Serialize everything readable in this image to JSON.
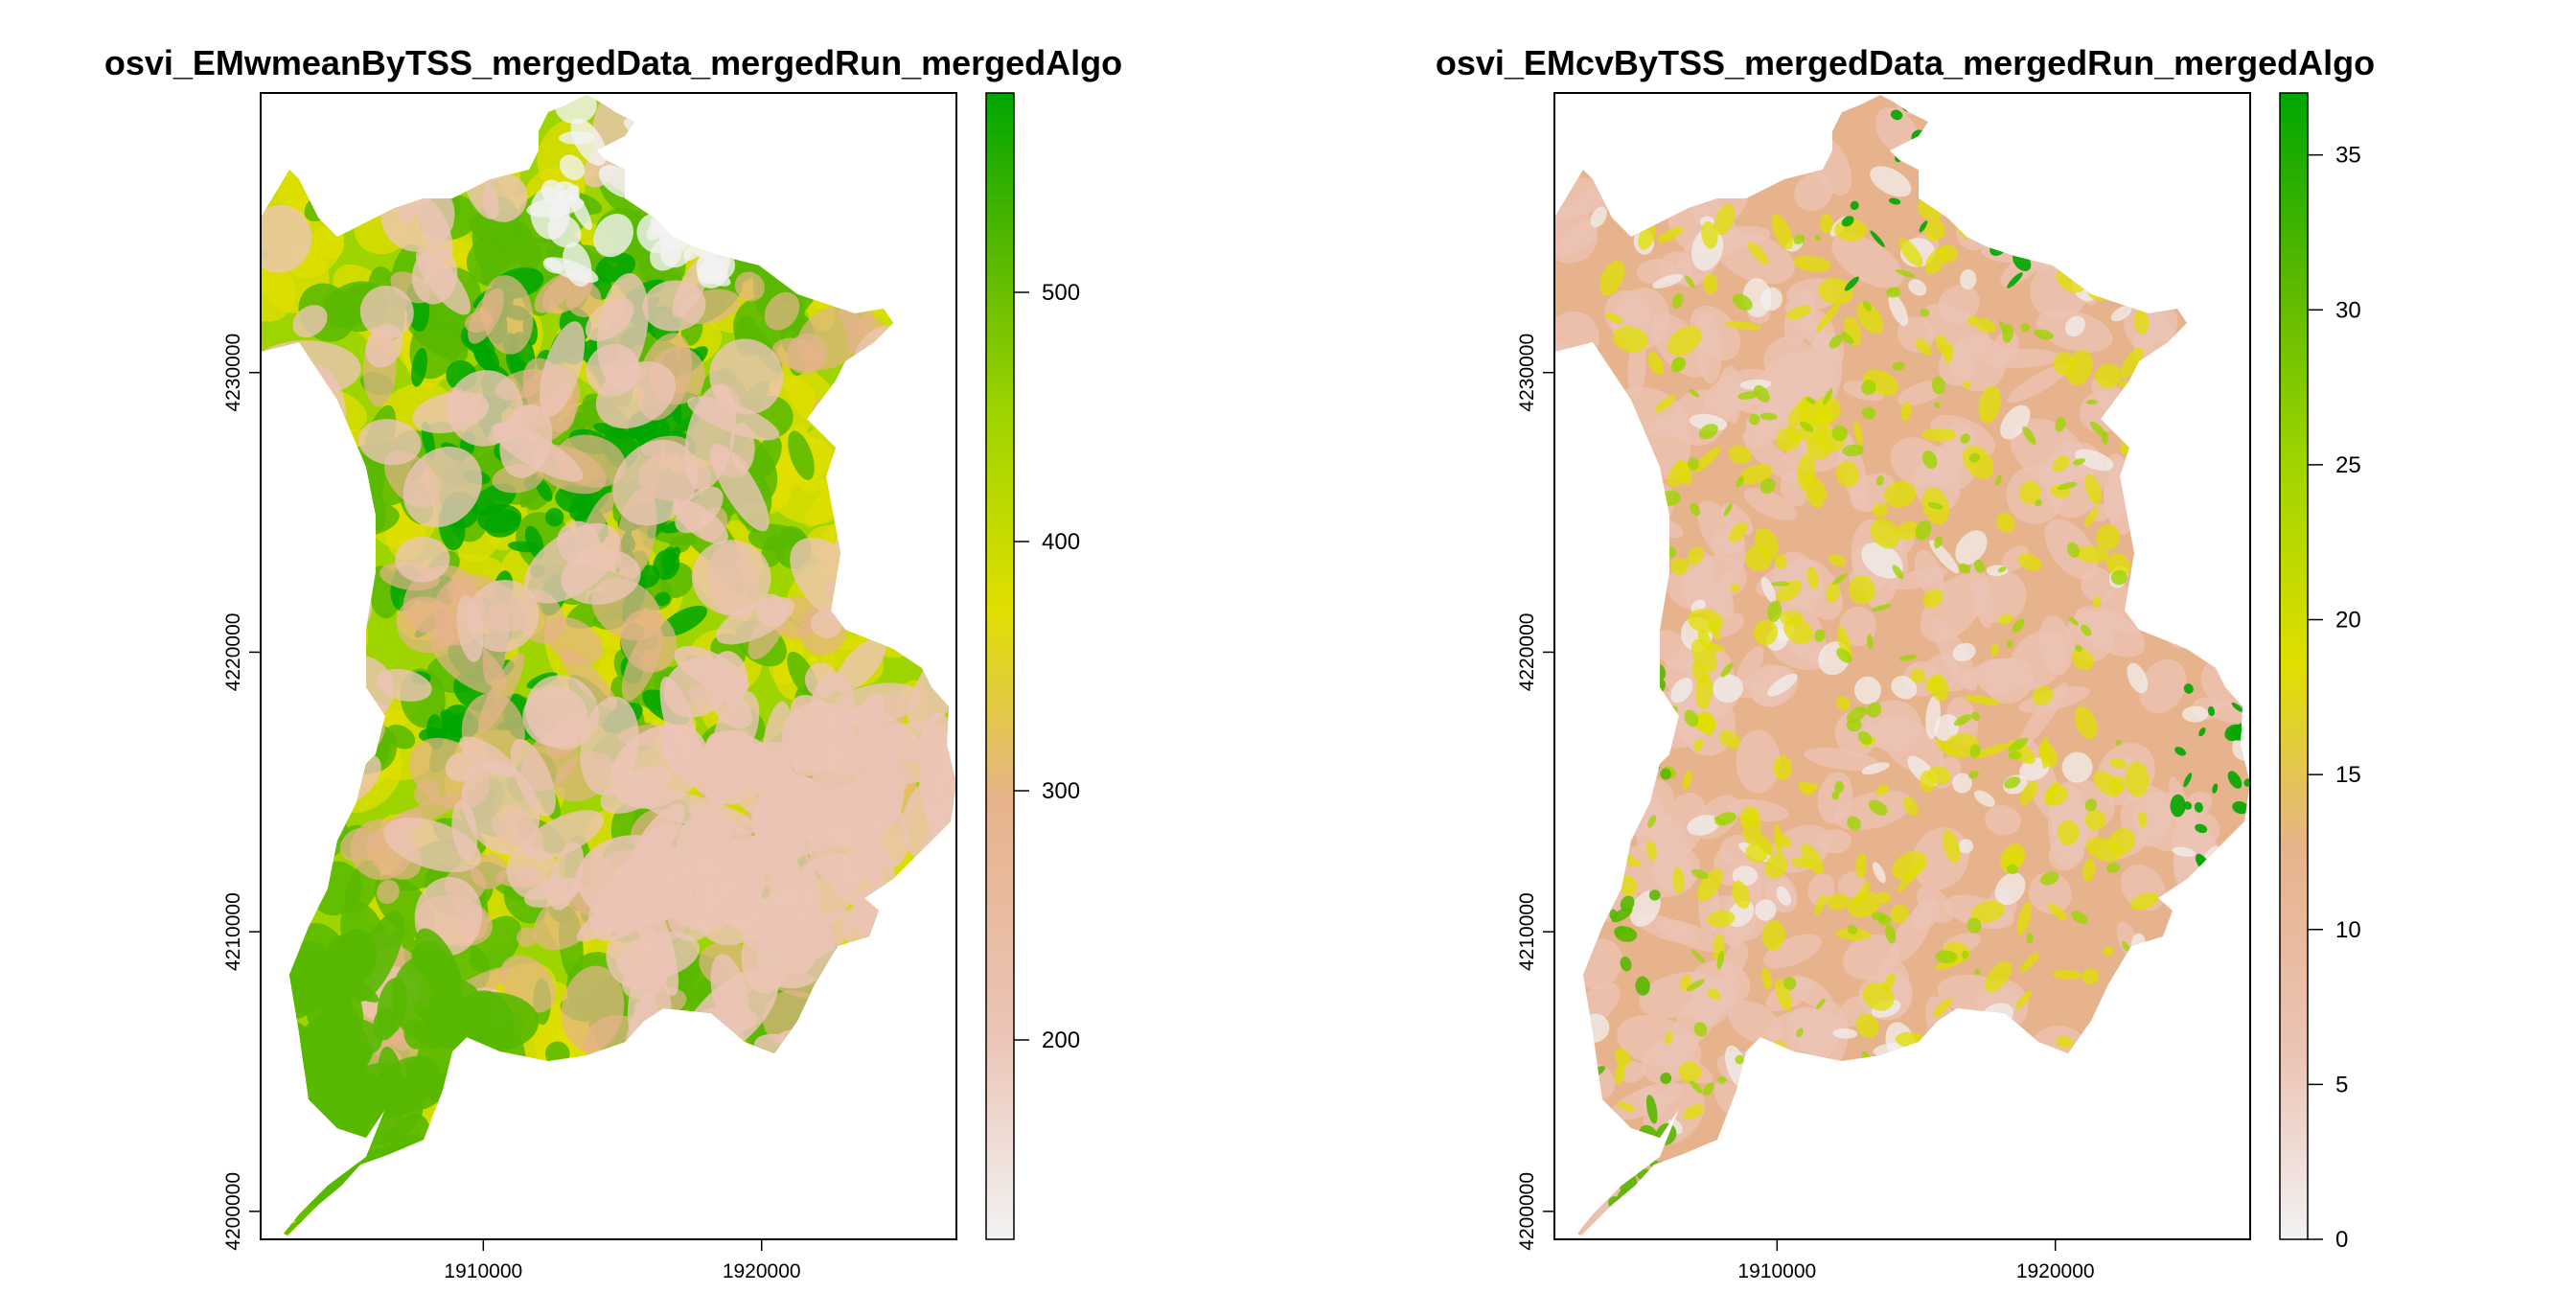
{
  "palette": {
    "pink_light": "#f2f2f2",
    "pink": "#ecc4b6",
    "tan": "#e6b38c",
    "olive_yellow": "#e0df00",
    "lime": "#9ed400",
    "green": "#58b800",
    "dark_green": "#00a600"
  },
  "chart_data": [
    {
      "type": "heatmap",
      "title": "osvi_EMwmeanByTSS_mergedData_mergedRun_mergedAlgo",
      "x_ticks": [
        "1910000",
        "1920000"
      ],
      "y_ticks": [
        "4200000",
        "4210000",
        "4220000",
        "4230000"
      ],
      "xlim": [
        1902000,
        1927000
      ],
      "ylim": [
        4199000,
        4240000
      ],
      "legend_ticks": [
        "200",
        "300",
        "400",
        "500"
      ],
      "legend_range": [
        120,
        580
      ],
      "dominant_classes": [
        "green",
        "lime",
        "olive_yellow",
        "tan",
        "pink"
      ]
    },
    {
      "type": "heatmap",
      "title": "osvi_EMcvByTSS_mergedData_mergedRun_mergedAlgo",
      "x_ticks": [
        "1910000",
        "1920000"
      ],
      "y_ticks": [
        "4200000",
        "4210000",
        "4220000",
        "4230000"
      ],
      "xlim": [
        1902000,
        1927000
      ],
      "ylim": [
        4199000,
        4240000
      ],
      "legend_ticks": [
        "0",
        "5",
        "10",
        "15",
        "20",
        "25",
        "30",
        "35"
      ],
      "legend_range": [
        0,
        37
      ],
      "dominant_classes": [
        "tan",
        "pink",
        "olive_yellow",
        "lime",
        "green"
      ]
    }
  ]
}
